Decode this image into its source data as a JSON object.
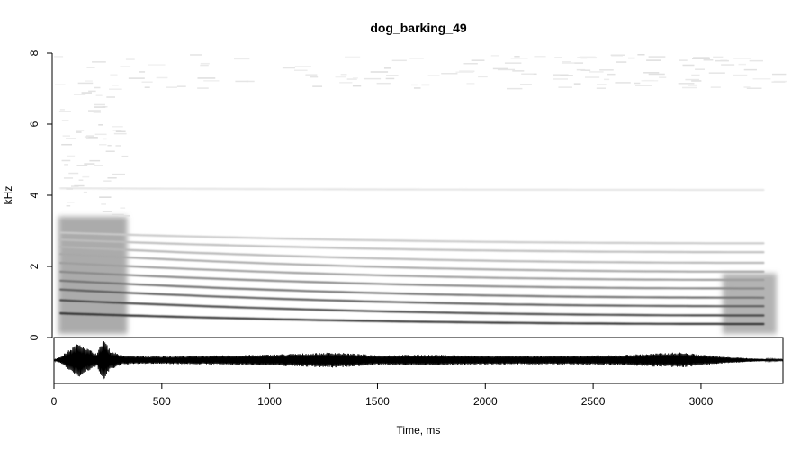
{
  "chart_data": {
    "type": "heatmap",
    "subtype": "spectrogram with oscillogram",
    "title": "dog_barking_49",
    "xlabel": "Time, ms",
    "ylabel": "kHz",
    "xlim": [
      0,
      3380
    ],
    "ylim": [
      0,
      8
    ],
    "x_ticks": [
      0,
      500,
      1000,
      1500,
      2000,
      2500,
      3000
    ],
    "y_ticks": [
      0,
      2,
      4,
      6,
      8
    ],
    "colormap": "white-to-black (intensity)",
    "color_low": "#ffffff",
    "color_high": "#000000",
    "duration_ms": 3350,
    "harmonics": [
      {
        "name": "",
        "freq_start_khz": 0.68,
        "freq_end_khz": 0.38,
        "intensity": 0.95
      },
      {
        "name": "",
        "freq_start_khz": 1.05,
        "freq_end_khz": 0.62,
        "intensity": 0.85
      },
      {
        "name": "",
        "freq_start_khz": 1.35,
        "freq_end_khz": 0.88,
        "intensity": 0.75
      },
      {
        "name": "",
        "freq_start_khz": 1.6,
        "freq_end_khz": 1.12,
        "intensity": 0.65
      },
      {
        "name": "",
        "freq_start_khz": 1.85,
        "freq_end_khz": 1.38,
        "intensity": 0.55
      },
      {
        "name": "",
        "freq_start_khz": 2.1,
        "freq_end_khz": 1.62,
        "intensity": 0.45
      },
      {
        "name": "",
        "freq_start_khz": 2.35,
        "freq_end_khz": 1.85,
        "intensity": 0.4
      },
      {
        "name": "",
        "freq_start_khz": 2.55,
        "freq_end_khz": 2.1,
        "intensity": 0.33
      },
      {
        "name": "",
        "freq_start_khz": 2.75,
        "freq_end_khz": 2.4,
        "intensity": 0.3
      },
      {
        "name": "",
        "freq_start_khz": 2.95,
        "freq_end_khz": 2.65,
        "intensity": 0.25
      },
      {
        "name": "",
        "freq_start_khz": 4.2,
        "freq_end_khz": 4.15,
        "intensity": 0.12
      }
    ],
    "noise_bursts": [
      {
        "t_start_ms": 20,
        "t_end_ms": 340,
        "f_low_khz": 0.1,
        "f_high_khz": 3.4,
        "intensity": 0.55
      },
      {
        "t_start_ms": 3100,
        "t_end_ms": 3350,
        "f_low_khz": 0.1,
        "f_high_khz": 1.8,
        "intensity": 0.5
      }
    ],
    "waveform_envelope": [
      {
        "t_ms": 0,
        "amp": 0.02
      },
      {
        "t_ms": 30,
        "amp": 0.15
      },
      {
        "t_ms": 80,
        "amp": 0.55
      },
      {
        "t_ms": 120,
        "amp": 0.8
      },
      {
        "t_ms": 160,
        "amp": 0.5
      },
      {
        "t_ms": 200,
        "amp": 0.3
      },
      {
        "t_ms": 230,
        "amp": 1.0
      },
      {
        "t_ms": 260,
        "amp": 0.45
      },
      {
        "t_ms": 320,
        "amp": 0.2
      },
      {
        "t_ms": 450,
        "amp": 0.17
      },
      {
        "t_ms": 700,
        "amp": 0.2
      },
      {
        "t_ms": 1000,
        "amp": 0.25
      },
      {
        "t_ms": 1300,
        "amp": 0.35
      },
      {
        "t_ms": 1500,
        "amp": 0.22
      },
      {
        "t_ms": 1700,
        "amp": 0.25
      },
      {
        "t_ms": 2000,
        "amp": 0.2
      },
      {
        "t_ms": 2300,
        "amp": 0.2
      },
      {
        "t_ms": 2600,
        "amp": 0.22
      },
      {
        "t_ms": 2900,
        "amp": 0.35
      },
      {
        "t_ms": 3100,
        "amp": 0.15
      },
      {
        "t_ms": 3250,
        "amp": 0.07
      },
      {
        "t_ms": 3380,
        "amp": 0.03
      }
    ]
  }
}
